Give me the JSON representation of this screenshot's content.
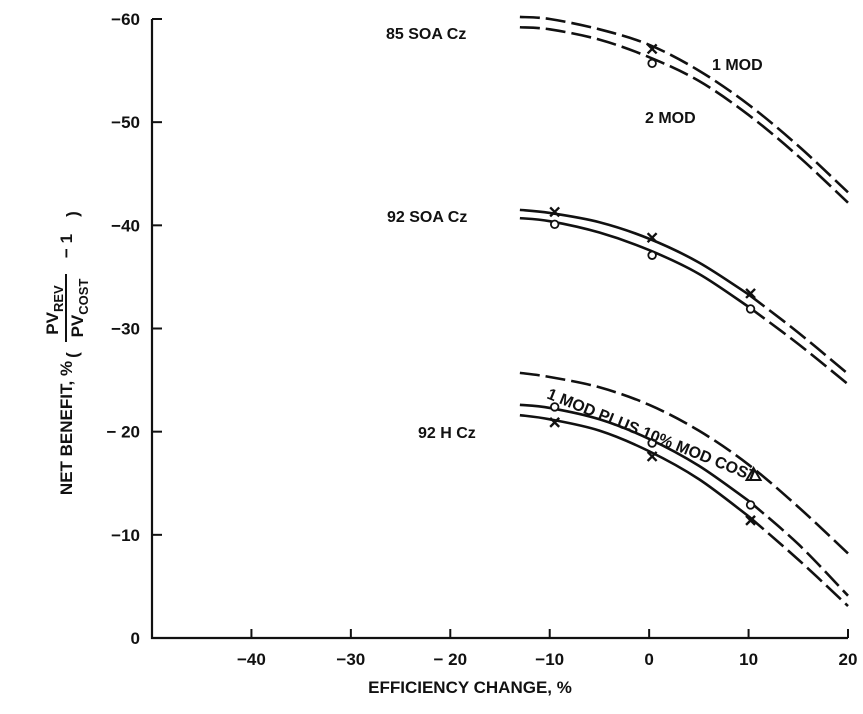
{
  "chart_data": {
    "type": "line",
    "title": "",
    "xlabel": "EFFICIENCY CHANGE, %",
    "ylabel": {
      "prefix": "NET BENEFIT, %",
      "numerator": "PV",
      "numerator_sub": "REV",
      "denominator": "PV",
      "denominator_sub": "COST",
      "suffix": "− 1"
    },
    "xlim": [
      -50,
      20
    ],
    "ylim": [
      0,
      -60
    ],
    "xticks": [
      -40,
      -30,
      -20,
      -10,
      0,
      10,
      20
    ],
    "xtick_labels": [
      "−40",
      "−30",
      "− 20",
      "−10",
      "0",
      "10",
      "20"
    ],
    "yticks": [
      0,
      -10,
      -20,
      -30,
      -40,
      -50,
      -60
    ],
    "ytick_labels": [
      "0",
      "−10",
      "− 20",
      "−30",
      "−40",
      "−50",
      "−60"
    ],
    "grid": false,
    "legend": "none",
    "groups": [
      {
        "label": "85 SOA Cz",
        "series": [
          {
            "name": "1 MOD",
            "style": "dashed",
            "x": [
              -13,
              -10,
              -5,
              0,
              5,
              10,
              15,
              20
            ],
            "y": [
              -60.2,
              -60,
              -59,
              -57.5,
              -55,
              -51.7,
              -47.7,
              -43.2
            ],
            "markers": []
          },
          {
            "name": "2 MOD",
            "style": "dashed",
            "x": [
              -13,
              -10,
              -5,
              0,
              5,
              10,
              15,
              20
            ],
            "y": [
              -59.2,
              -59,
              -58,
              -56.3,
              -54,
              -50.7,
              -46.7,
              -42.2
            ],
            "markers": []
          }
        ],
        "point_markers": [
          {
            "type": "x",
            "x": 0.3,
            "y": -57.1
          },
          {
            "type": "o",
            "x": 0.3,
            "y": -55.7
          }
        ]
      },
      {
        "label": "92 SOA Cz",
        "series": [
          {
            "name": "",
            "style": "solid-to-dashed",
            "x": [
              -13,
              -10,
              -5,
              0,
              5,
              10,
              15,
              20
            ],
            "y": [
              -41.5,
              -41.2,
              -40.3,
              -38.7,
              -36.4,
              -33.3,
              -29.6,
              -25.6
            ],
            "markers": []
          },
          {
            "name": "",
            "style": "solid-to-dashed",
            "x": [
              -13,
              -10,
              -5,
              0,
              5,
              10,
              15,
              20
            ],
            "y": [
              -40.7,
              -40.4,
              -39.3,
              -37.6,
              -35.3,
              -32.1,
              -28.5,
              -24.6
            ],
            "markers": []
          }
        ],
        "point_markers": [
          {
            "type": "x",
            "x": -9.5,
            "y": -41.3
          },
          {
            "type": "o",
            "x": -9.5,
            "y": -40.1
          },
          {
            "type": "x",
            "x": 0.3,
            "y": -38.8
          },
          {
            "type": "o",
            "x": 0.3,
            "y": -37.1
          },
          {
            "type": "x",
            "x": 10.2,
            "y": -33.4
          },
          {
            "type": "o",
            "x": 10.2,
            "y": -31.9
          }
        ]
      },
      {
        "label": "92 H Cz",
        "series": [
          {
            "name": "1 MOD PLUS 10% MOD COST",
            "style": "dashed",
            "x": [
              -13,
              -10,
              -5,
              0,
              5,
              10,
              15,
              20
            ],
            "y": [
              -25.7,
              -25.3,
              -24.3,
              -22.6,
              -20.1,
              -16.8,
              -12.7,
              -8.2
            ],
            "markers": []
          },
          {
            "name": "",
            "style": "solid-to-dashed",
            "x": [
              -13,
              -10,
              -5,
              0,
              5,
              10,
              15,
              20
            ],
            "y": [
              -22.6,
              -22.3,
              -21.2,
              -19.3,
              -16.7,
              -13.3,
              -9.1,
              -4.1
            ],
            "markers": []
          },
          {
            "name": "",
            "style": "solid-to-dashed",
            "x": [
              -13,
              -10,
              -5,
              0,
              5,
              10,
              15,
              20
            ],
            "y": [
              -21.6,
              -21.2,
              -20.1,
              -18.1,
              -15.4,
              -11.8,
              -7.6,
              -3.1
            ],
            "markers": []
          }
        ],
        "point_markers": [
          {
            "type": "o",
            "x": -9.5,
            "y": -22.4
          },
          {
            "type": "x",
            "x": -9.5,
            "y": -20.9
          },
          {
            "type": "o",
            "x": 0.3,
            "y": -18.9
          },
          {
            "type": "x",
            "x": 0.3,
            "y": -17.6
          },
          {
            "type": "o",
            "x": 10.2,
            "y": -12.9
          },
          {
            "type": "x",
            "x": 10.2,
            "y": -11.4
          },
          {
            "type": "triangle",
            "x": 10.5,
            "y": -15.8
          }
        ]
      }
    ]
  }
}
